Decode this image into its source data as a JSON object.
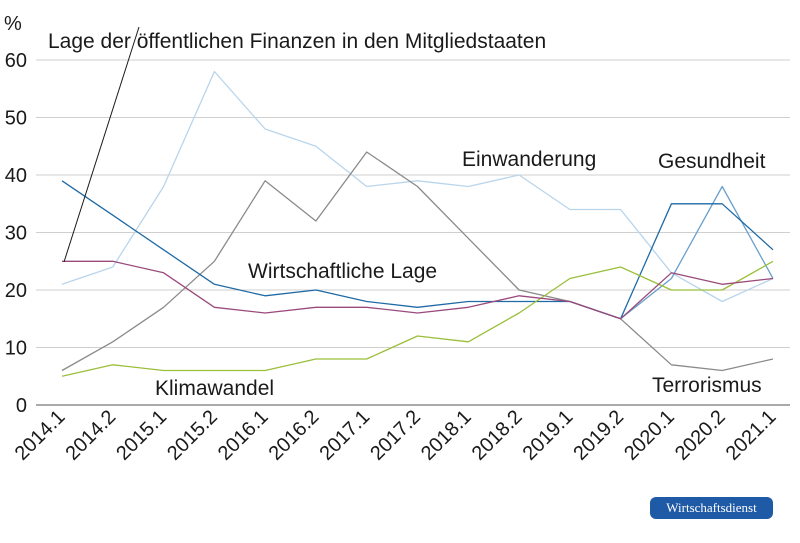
{
  "chart_data": {
    "type": "line",
    "ylabel": "%",
    "ylim": [
      0,
      60
    ],
    "yticks": [
      "0",
      "10",
      "20",
      "30",
      "40",
      "50",
      "60"
    ],
    "categories": [
      "2014.1",
      "2014.2",
      "2015.1",
      "2015.2",
      "2016.1",
      "2016.2",
      "2017.1",
      "2017.2",
      "2018.1",
      "2018.2",
      "2019.1",
      "2019.2",
      "2020.1",
      "2020.2",
      "2021.1"
    ],
    "grid": true,
    "series": [
      {
        "name": "Einwanderung",
        "color": "#b9d5ec",
        "values": [
          21,
          24,
          38,
          58,
          48,
          45,
          38,
          39,
          38,
          40,
          34,
          34,
          23,
          18,
          22
        ]
      },
      {
        "name": "Lage der öffentlichen Finanzen in den Mitgliedstaaten",
        "color": "#8a8a8a",
        "values": [
          6,
          11,
          17,
          25,
          39,
          32,
          44,
          38,
          29,
          20,
          18,
          15,
          7,
          6,
          8
        ]
      },
      {
        "name": "Gesundheit",
        "color": "#6aa0cc",
        "values": [
          null,
          null,
          null,
          null,
          null,
          null,
          null,
          null,
          null,
          null,
          null,
          15,
          22,
          38,
          22
        ]
      },
      {
        "name": "Wirtschaftliche Lage",
        "color": "#1f6aa5",
        "values": [
          39,
          33,
          27,
          21,
          19,
          20,
          18,
          17,
          18,
          18,
          18,
          15,
          35,
          35,
          27
        ]
      },
      {
        "name": "Klimawandel",
        "color": "#9bbf3a",
        "values": [
          5,
          7,
          6,
          6,
          6,
          8,
          8,
          12,
          11,
          16,
          22,
          24,
          20,
          20,
          25
        ]
      },
      {
        "name": "Terrorismus",
        "color": "#9a4a7c",
        "values": [
          25,
          25,
          23,
          17,
          16,
          17,
          17,
          16,
          17,
          19,
          18,
          15,
          23,
          21,
          22
        ]
      }
    ],
    "annotations": [
      "Lage der öffentlichen Finanzen in den Mitgliedstaaten",
      "Einwanderung",
      "Gesundheit",
      "Wirtschaftliche Lage",
      "Klimawandel",
      "Terrorismus"
    ]
  },
  "badge": "Wirtschaftsdienst"
}
